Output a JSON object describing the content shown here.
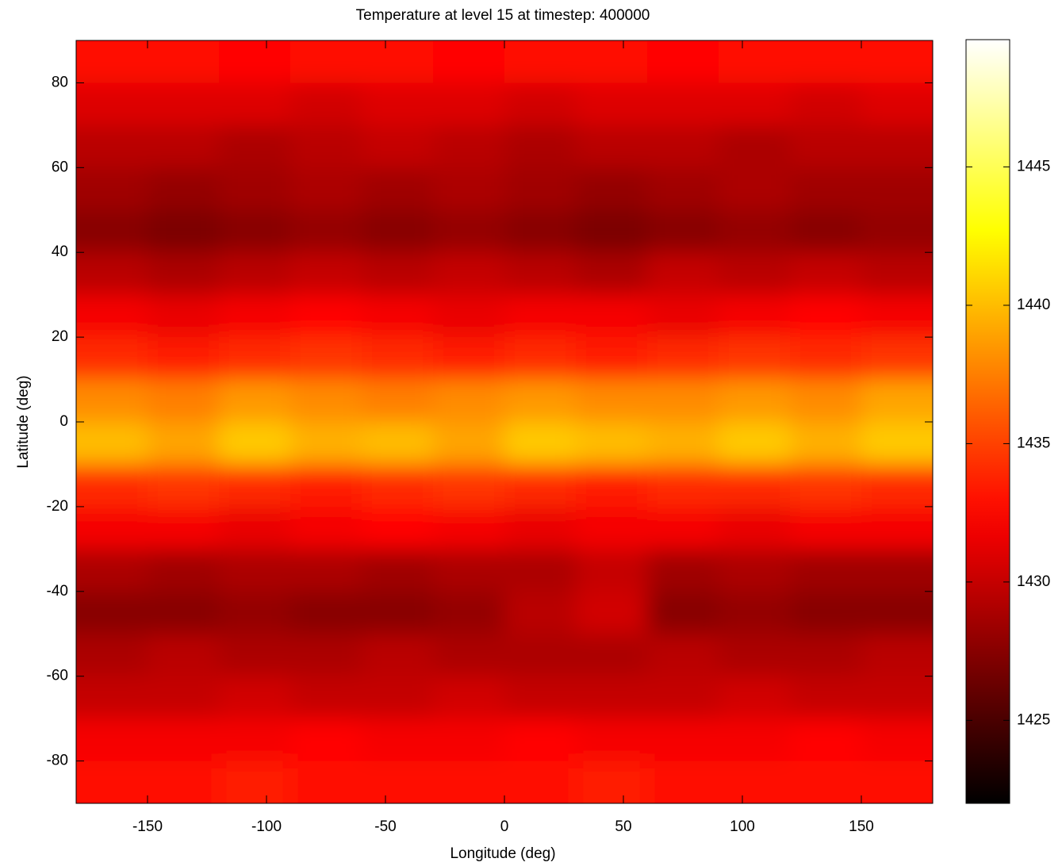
{
  "chart_data": {
    "type": "heatmap",
    "title": "Temperature at level 15 at timestep: 400000",
    "x_label": "Longitude (deg)",
    "y_label": "Latitude (deg)",
    "colormap": "hot",
    "x": [
      -165,
      -135,
      -105,
      -75,
      -45,
      -15,
      15,
      45,
      75,
      105,
      135,
      165
    ],
    "y": [
      85,
      75,
      65,
      55,
      45,
      35,
      25,
      15,
      5,
      -5,
      -15,
      -25,
      -35,
      -45,
      -55,
      -65,
      -75,
      -85
    ],
    "z": [
      [
        1433,
        1433,
        1432.5,
        1433,
        1433,
        1432.5,
        1433,
        1433,
        1432.5,
        1433,
        1433,
        1433
      ],
      [
        1431,
        1431,
        1431,
        1430.5,
        1431,
        1431,
        1430.5,
        1431,
        1431,
        1431,
        1430.5,
        1431
      ],
      [
        1429.5,
        1429.5,
        1429,
        1429.5,
        1430,
        1429.5,
        1429,
        1429.5,
        1429.5,
        1429,
        1429.5,
        1429.5
      ],
      [
        1428.5,
        1428,
        1428.5,
        1429,
        1428.5,
        1429,
        1428.5,
        1428,
        1428.5,
        1429,
        1428.5,
        1428.5
      ],
      [
        1427.5,
        1427,
        1427.5,
        1428,
        1427.5,
        1428,
        1427.5,
        1427,
        1427.5,
        1428,
        1427.5,
        1428
      ],
      [
        1429.5,
        1429,
        1429.5,
        1430,
        1429.5,
        1430,
        1429.5,
        1429,
        1430,
        1429.5,
        1430,
        1429.5
      ],
      [
        1432,
        1431.5,
        1432,
        1432.5,
        1432,
        1431.5,
        1432,
        1432,
        1431.5,
        1432,
        1432.5,
        1432
      ],
      [
        1434,
        1433.5,
        1434,
        1434.5,
        1434,
        1433.5,
        1434,
        1433.5,
        1434,
        1434.5,
        1434,
        1434.5
      ],
      [
        1438,
        1437.5,
        1438.5,
        1438,
        1437.5,
        1438,
        1438.5,
        1438,
        1438,
        1438.5,
        1438,
        1439
      ],
      [
        1440,
        1439,
        1440.5,
        1439.5,
        1440,
        1439,
        1440.5,
        1440,
        1439.5,
        1440.5,
        1439.5,
        1440.5
      ],
      [
        1434,
        1434.5,
        1434,
        1433.5,
        1434,
        1434.5,
        1434,
        1433.5,
        1434,
        1434,
        1434.5,
        1434
      ],
      [
        1432,
        1432,
        1431.5,
        1432,
        1432.5,
        1432,
        1431.5,
        1432,
        1432,
        1431.5,
        1432,
        1432
      ],
      [
        1429,
        1428.5,
        1429,
        1429,
        1428.5,
        1429,
        1429,
        1430,
        1428.5,
        1429,
        1428.5,
        1428.5
      ],
      [
        1427.5,
        1427.5,
        1428,
        1427.5,
        1427.5,
        1428,
        1429.5,
        1430.5,
        1427.5,
        1428,
        1427.5,
        1427.5
      ],
      [
        1429,
        1429.5,
        1429,
        1429,
        1429.5,
        1429,
        1429,
        1429,
        1429.5,
        1429,
        1429,
        1429.5
      ],
      [
        1430,
        1430,
        1430.5,
        1430,
        1430,
        1430.5,
        1430,
        1430,
        1430,
        1430.5,
        1430,
        1430
      ],
      [
        1432,
        1432,
        1432,
        1432.5,
        1432,
        1432,
        1432.5,
        1432,
        1432,
        1432,
        1432.5,
        1432
      ],
      [
        1433,
        1433,
        1433.5,
        1433,
        1433,
        1433,
        1433,
        1433.5,
        1433,
        1433,
        1433,
        1433
      ]
    ],
    "xlim": [
      -180,
      180
    ],
    "xticks": [
      -150,
      -100,
      -50,
      0,
      50,
      100,
      150
    ],
    "ylim": [
      -90,
      90
    ],
    "yticks": [
      -80,
      -60,
      -40,
      -20,
      0,
      20,
      40,
      60,
      80
    ],
    "clim": [
      1422,
      1449.6
    ],
    "cticks": [
      1425,
      1430,
      1435,
      1440,
      1445
    ]
  }
}
